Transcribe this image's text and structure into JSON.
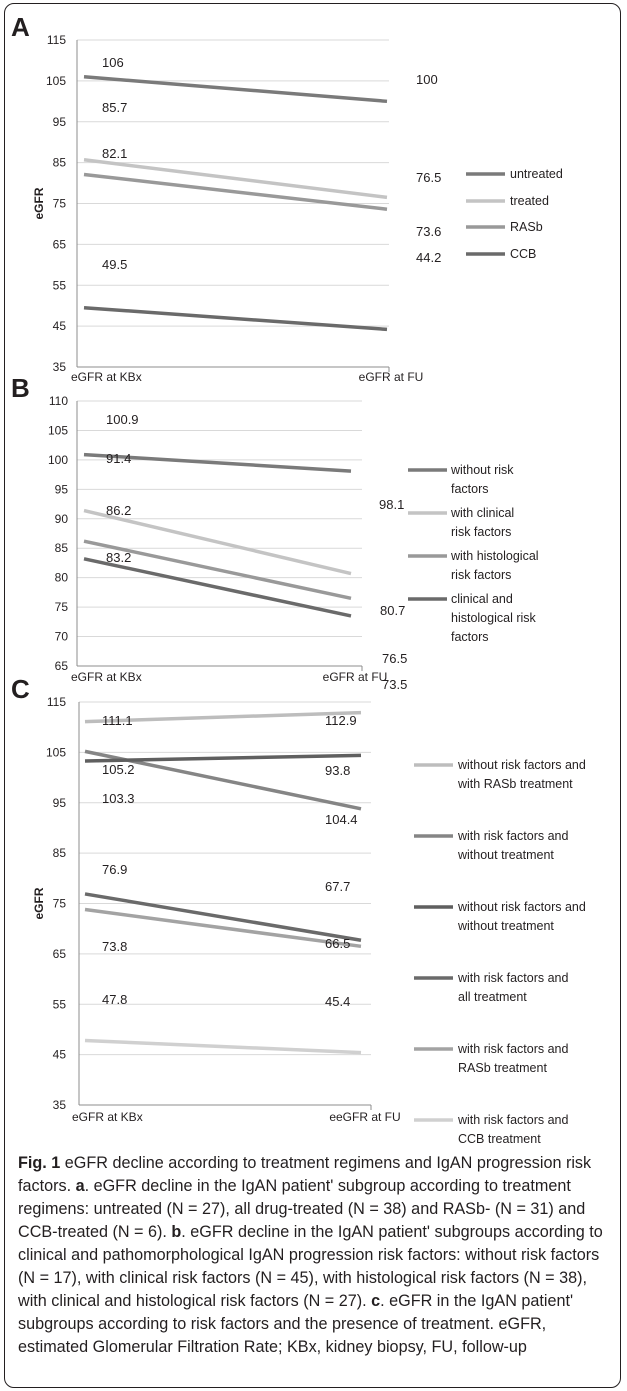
{
  "chart_data": [
    {
      "panel_letter": "A",
      "type": "line",
      "x": [
        "eGFR at KBx",
        "eGFR at FU"
      ],
      "ylabel": "eGFR",
      "ylim": [
        35,
        115
      ],
      "yticks": [
        35,
        45,
        55,
        65,
        75,
        85,
        95,
        105,
        115
      ],
      "grid": true,
      "legend_position": "right",
      "series": [
        {
          "name": "untreated",
          "values": [
            106,
            100
          ],
          "color": "#7a7a7a"
        },
        {
          "name": "treated",
          "values": [
            85.7,
            76.5
          ],
          "color": "#c4c4c4"
        },
        {
          "name": "RASb",
          "values": [
            82.1,
            73.6
          ],
          "color": "#999999"
        },
        {
          "name": "CCB",
          "values": [
            49.5,
            44.2
          ],
          "color": "#6a6a6a"
        }
      ]
    },
    {
      "panel_letter": "B",
      "type": "line",
      "x": [
        "eGFR at KBx",
        "eGFR at FU"
      ],
      "ylabel": "",
      "ylim": [
        65,
        110
      ],
      "yticks": [
        65,
        70,
        75,
        80,
        85,
        90,
        95,
        100,
        105,
        110
      ],
      "grid": true,
      "legend_position": "right",
      "series": [
        {
          "name": "without risk factors",
          "values": [
            100.9,
            98.1
          ],
          "color": "#7a7a7a"
        },
        {
          "name": "with clinical risk factors",
          "values": [
            91.4,
            80.7
          ],
          "color": "#c4c4c4"
        },
        {
          "name": "with histological risk factors",
          "values": [
            86.2,
            76.5
          ],
          "color": "#999999"
        },
        {
          "name": "clinical and histological risk factors",
          "values": [
            83.2,
            73.5
          ],
          "color": "#6a6a6a"
        }
      ]
    },
    {
      "panel_letter": "C",
      "type": "line",
      "x": [
        "eGFR at KBx",
        "eeGFR at FU"
      ],
      "ylabel": "eGFR",
      "ylim": [
        35,
        115
      ],
      "yticks": [
        35,
        45,
        55,
        65,
        75,
        85,
        95,
        105,
        115
      ],
      "grid": true,
      "legend_position": "right",
      "series": [
        {
          "name": "without risk factors and with RASb treatment",
          "values": [
            111.1,
            112.9
          ],
          "color": "#bdbdbd"
        },
        {
          "name": "with risk factors and without treatment",
          "values": [
            105.2,
            93.8
          ],
          "color": "#858585"
        },
        {
          "name": "without risk factors and without treatment",
          "values": [
            103.3,
            104.4
          ],
          "color": "#5f5f5f"
        },
        {
          "name": "with risk factors and all treatment",
          "values": [
            76.9,
            67.7
          ],
          "color": "#6a6a6a"
        },
        {
          "name": "with risk factors and RASb treatment",
          "values": [
            73.8,
            66.5
          ],
          "color": "#a3a3a3"
        },
        {
          "name": "with risk factors and CCB treatment",
          "values": [
            47.8,
            45.4
          ],
          "color": "#d0d0d0"
        }
      ]
    }
  ],
  "caption": {
    "fig_label": "Fig. 1",
    "title": " eGFR decline according to treatment regimens and IgAN progression risk factors. ",
    "a_label": "a",
    "a_text": ". eGFR decline in the IgAN patient' subgroup according to treatment regimens: untreated (N = 27), all drug-treated (N = 38) and RASb- (N = 31) and CCB-treated (N = 6). ",
    "b_label": "b",
    "b_text": ". eGFR decline in the IgAN patient' subgroups according to clinical and pathomorphological IgAN progression risk factors: without risk factors (N = 17), with clinical risk factors (N = 45), with histological risk factors (N = 38), with clinical and histological risk factors (N = 27). ",
    "c_label": "c",
    "c_text": ". eGFR in the IgAN patient' subgroups according to risk factors and the presence of treatment. eGFR, estimated Glomerular Filtration Rate; KBx, kidney biopsy, FU, follow-up"
  }
}
